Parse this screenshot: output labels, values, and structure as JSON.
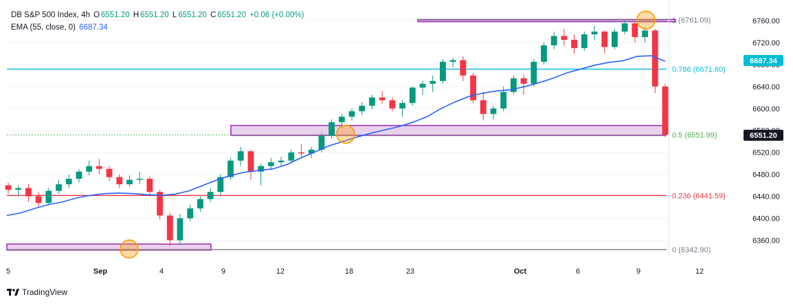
{
  "legend": {
    "symbol": "DB S&P 500 Index, 4h",
    "open_label": "O",
    "open": "6551.20",
    "high_label": "H",
    "high": "6551.20",
    "low_label": "L",
    "low": "6551.20",
    "close_label": "C",
    "close": "6551.20",
    "change": "+0.06 (+0.00%)",
    "ema_label": "EMA (55, close, 0)",
    "ema_value": "6687.34"
  },
  "brand": "TradingView",
  "colors": {
    "up": "#089981",
    "down": "#f23645",
    "ema": "#2962ff",
    "fib_1": "#787b86",
    "fib_786": "#00bcd4",
    "fib_05": "#4caf50",
    "fib_236": "#f23645",
    "fib_0": "#787b86",
    "zone_fill": "#e1bee7",
    "zone_stroke": "#9c27b0",
    "circle": "#ff9800"
  },
  "chart_data": {
    "type": "candlestick",
    "x_ticks": [
      "5",
      "Sep",
      "4",
      "9",
      "12",
      "18",
      "23",
      "Oct",
      "6",
      "9",
      "12"
    ],
    "y_ticks": [
      6360,
      6400,
      6440,
      6480,
      6520,
      6560,
      6600,
      6640,
      6680,
      6720,
      6760
    ],
    "y_tick_labels": [
      "6360.00",
      "6400.00",
      "6440.00",
      "6480.00",
      "6520.00",
      "6560.00",
      "6600.00",
      "6640.00",
      "6680.00",
      "6720.00",
      "6760.00"
    ],
    "ylim": [
      6328,
      6775
    ],
    "fib_levels": [
      {
        "label": "1 (6761.09)",
        "value": 6761.09
      },
      {
        "label": "0.786 (6671.60)",
        "value": 6671.6
      },
      {
        "label": "0.5 (6551.99)",
        "value": 6551.99
      },
      {
        "label": "0.236 (6441.59)",
        "value": 6441.59
      },
      {
        "label": "0 (6342.90)",
        "value": 6342.9
      }
    ],
    "price_tags": [
      {
        "label": "6687.34",
        "value": 6687.34,
        "series": "EMA"
      },
      {
        "label": "6551.20",
        "value": 6551.2,
        "series": "Last"
      }
    ],
    "zones": [
      {
        "low": 6758,
        "high": 6762
      },
      {
        "low": 6551,
        "high": 6569
      },
      {
        "low": 6342,
        "high": 6353
      }
    ],
    "anchors": [
      {
        "value": 6761
      },
      {
        "value": 6553
      },
      {
        "value": 6344
      }
    ],
    "ema_series": [
      6405,
      6410,
      6418,
      6425,
      6430,
      6437,
      6442,
      6445,
      6446,
      6445,
      6443,
      6442,
      6444,
      6450,
      6460,
      6470,
      6478,
      6484,
      6487,
      6490,
      6498,
      6510,
      6521,
      6532,
      6540,
      6548,
      6555,
      6561,
      6567,
      6575,
      6585,
      6600,
      6612,
      6622,
      6628,
      6632,
      6634,
      6640,
      6647,
      6655,
      6665,
      6672,
      6679,
      6684,
      6687,
      6695,
      6696,
      6686
    ],
    "series": [
      {
        "name": "DB S&P 500 Index",
        "ohlc": [
          [
            6460,
            6465,
            6445,
            6452
          ],
          [
            6452,
            6460,
            6440,
            6455
          ],
          [
            6455,
            6462,
            6430,
            6440
          ],
          [
            6440,
            6448,
            6420,
            6428
          ],
          [
            6428,
            6455,
            6425,
            6450
          ],
          [
            6450,
            6470,
            6445,
            6462
          ],
          [
            6462,
            6480,
            6455,
            6472
          ],
          [
            6472,
            6490,
            6465,
            6485
          ],
          [
            6485,
            6505,
            6478,
            6495
          ],
          [
            6495,
            6508,
            6480,
            6490
          ],
          [
            6490,
            6495,
            6468,
            6475
          ],
          [
            6475,
            6480,
            6455,
            6462
          ],
          [
            6462,
            6478,
            6458,
            6470
          ],
          [
            6470,
            6485,
            6462,
            6472
          ],
          [
            6472,
            6476,
            6440,
            6448
          ],
          [
            6448,
            6452,
            6398,
            6405
          ],
          [
            6405,
            6410,
            6350,
            6360
          ],
          [
            6360,
            6408,
            6352,
            6400
          ],
          [
            6400,
            6425,
            6395,
            6418
          ],
          [
            6418,
            6440,
            6412,
            6435
          ],
          [
            6435,
            6455,
            6430,
            6448
          ],
          [
            6448,
            6480,
            6442,
            6475
          ],
          [
            6475,
            6510,
            6470,
            6505
          ],
          [
            6505,
            6530,
            6495,
            6522
          ],
          [
            6522,
            6525,
            6470,
            6485
          ],
          [
            6485,
            6500,
            6460,
            6495
          ],
          [
            6495,
            6510,
            6488,
            6502
          ],
          [
            6502,
            6512,
            6495,
            6505
          ],
          [
            6505,
            6525,
            6500,
            6520
          ],
          [
            6520,
            6535,
            6510,
            6518
          ],
          [
            6518,
            6530,
            6510,
            6525
          ],
          [
            6525,
            6555,
            6520,
            6550
          ],
          [
            6550,
            6580,
            6545,
            6575
          ],
          [
            6575,
            6590,
            6565,
            6585
          ],
          [
            6585,
            6600,
            6578,
            6595
          ],
          [
            6595,
            6612,
            6588,
            6605
          ],
          [
            6605,
            6625,
            6598,
            6620
          ],
          [
            6620,
            6632,
            6608,
            6615
          ],
          [
            6615,
            6620,
            6595,
            6600
          ],
          [
            6600,
            6615,
            6585,
            6610
          ],
          [
            6610,
            6640,
            6605,
            6638
          ],
          [
            6638,
            6650,
            6625,
            6645
          ],
          [
            6645,
            6660,
            6630,
            6650
          ],
          [
            6650,
            6690,
            6645,
            6685
          ],
          [
            6685,
            6692,
            6675,
            6688
          ],
          [
            6688,
            6695,
            6650,
            6660
          ],
          [
            6660,
            6665,
            6610,
            6615
          ],
          [
            6615,
            6630,
            6578,
            6590
          ],
          [
            6590,
            6605,
            6580,
            6600
          ],
          [
            6600,
            6640,
            6595,
            6630
          ],
          [
            6630,
            6660,
            6625,
            6655
          ],
          [
            6655,
            6662,
            6625,
            6645
          ],
          [
            6645,
            6690,
            6640,
            6685
          ],
          [
            6685,
            6720,
            6680,
            6715
          ],
          [
            6715,
            6740,
            6708,
            6732
          ],
          [
            6732,
            6745,
            6715,
            6725
          ],
          [
            6725,
            6735,
            6700,
            6710
          ],
          [
            6710,
            6740,
            6705,
            6735
          ],
          [
            6735,
            6750,
            6725,
            6740
          ],
          [
            6740,
            6742,
            6700,
            6712
          ],
          [
            6712,
            6745,
            6708,
            6740
          ],
          [
            6740,
            6760,
            6735,
            6755
          ],
          [
            6755,
            6758,
            6720,
            6730
          ],
          [
            6730,
            6748,
            6720,
            6742
          ],
          [
            6742,
            6745,
            6628,
            6640
          ],
          [
            6640,
            6645,
            6548,
            6552
          ]
        ]
      }
    ]
  }
}
